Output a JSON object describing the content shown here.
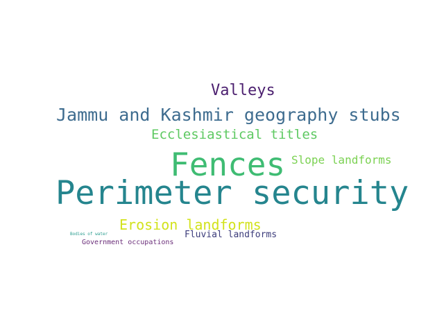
{
  "word_cloud": {
    "words": [
      {
        "id": "valleys",
        "text": "Valleys",
        "color": "#4b1f6f"
      },
      {
        "id": "jammu",
        "text": "Jammu and Kashmir geography stubs",
        "color": "#3e6c8f"
      },
      {
        "id": "eccl",
        "text": "Ecclesiastical titles",
        "color": "#5ec962"
      },
      {
        "id": "fences",
        "text": "Fences",
        "color": "#3fbc73"
      },
      {
        "id": "slope",
        "text": "Slope landforms",
        "color": "#7ad151"
      },
      {
        "id": "perimeter",
        "text": "Perimeter security",
        "color": "#25858e"
      },
      {
        "id": "erosion",
        "text": "Erosion landforms",
        "color": "#d2e21b"
      },
      {
        "id": "bodies",
        "text": "Bodies of water",
        "color": "#2a9d8f"
      },
      {
        "id": "fluvial",
        "text": "Fluvial landforms",
        "color": "#3b3b7a"
      },
      {
        "id": "government",
        "text": "Government occupations",
        "color": "#6b2f7a"
      }
    ]
  }
}
